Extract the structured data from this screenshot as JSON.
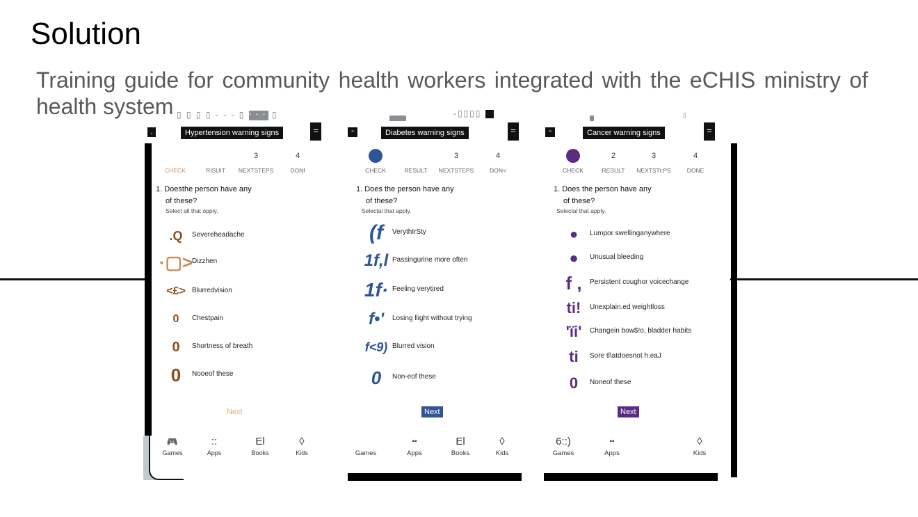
{
  "slide": {
    "title": "Solution",
    "subtitle": "Training guide for community health workers integrated with the eCHIS ministry of health system"
  },
  "glitch": {
    "g1": "▯ ▯ ▯ ▯ - - - ▯",
    "g1b": "- - -",
    "g1c": "▯",
    "g2": "-▯▯▯▯",
    "g3": "▯"
  },
  "panels": [
    {
      "title": "Hypertension warning signs",
      "accent": "#8a4e1f",
      "accent_light": "#c98a55",
      "next_bg": "#ffffff",
      "next_color": "#e8a87c",
      "steps": [
        {
          "num": "",
          "label": "CHECK"
        },
        {
          "num": "",
          "label": "RISUIT"
        },
        {
          "num": "3",
          "label": "NEXTSTEPS"
        },
        {
          "num": "4",
          "label": "DONf"
        }
      ],
      "question_line1": "1.  Doesthe person have any",
      "question_line2": "of these?",
      "hint": "Select all that oppiy.",
      "options": [
        {
          "icon": ".Q",
          "label": "Severeheadache"
        },
        {
          "icon": "·▢>",
          "label": "Dizzhen"
        },
        {
          "icon": "<£>",
          "label": "Blurredvision"
        },
        {
          "icon": "0",
          "label": "Chestpain"
        },
        {
          "icon": "0",
          "label": "Shortness of  breath"
        },
        {
          "icon": "0",
          "label": "Nooeof these"
        }
      ],
      "next": "Next",
      "nav": [
        {
          "icon": "🎮",
          "label": "Games"
        },
        {
          "icon": "::",
          "label": "Apps"
        },
        {
          "icon": "El",
          "label": "Books"
        },
        {
          "icon": "◊",
          "label": "Kids"
        }
      ]
    },
    {
      "title": "Diabetes warning signs",
      "accent": "#2f5597",
      "accent_light": "#2f5597",
      "next_bg": "#2f5597",
      "next_color": "#ffffff",
      "steps": [
        {
          "num": "",
          "label": "CHECK"
        },
        {
          "num": "",
          "label": "RESULT"
        },
        {
          "num": "3",
          "label": "NEXTSTEPS"
        },
        {
          "num": "4",
          "label": "DON<"
        }
      ],
      "question_line1": "1.  Does the person have any",
      "question_line2": "of these?",
      "hint": "Selectal that apply.",
      "options": [
        {
          "icon": "(f",
          "label": "VerythIrSty"
        },
        {
          "icon": "1f,l",
          "label": "Passingurine more often"
        },
        {
          "icon": "1f·",
          "label": "Feeling verytired"
        },
        {
          "icon": "f•'",
          "label": "Losing llight  without  trying"
        },
        {
          "icon": "f<9)",
          "label": "Blurred  vision"
        },
        {
          "icon": "0",
          "label": "Non-eof  these"
        }
      ],
      "next": "Next",
      "nav": [
        {
          "icon": "",
          "label": "Games"
        },
        {
          "icon": "▪▪",
          "label": "Apps"
        },
        {
          "icon": "El",
          "label": "Books"
        },
        {
          "icon": "◊",
          "label": "Kids"
        }
      ]
    },
    {
      "title": "Cancer warning signs",
      "accent": "#5b2c83",
      "accent_light": "#5b2c83",
      "next_bg": "#5b2c83",
      "next_color": "#ffffff",
      "steps": [
        {
          "num": "",
          "label": "CHECK"
        },
        {
          "num": "2",
          "label": "RESULT"
        },
        {
          "num": "3",
          "label": "NEXTSTt:PS"
        },
        {
          "num": "4",
          "label": "DONE"
        }
      ],
      "question_line1": "1.  Does the person have any",
      "question_line2": "of these?",
      "hint": "Selectal  that apply.",
      "options": [
        {
          "icon": "●",
          "label": "Lumpor  swellinganywhere"
        },
        {
          "icon": "●",
          "label": "Unusual bleeding"
        },
        {
          "icon": "f ,",
          "label": "Persistent coughor voicechange"
        },
        {
          "icon": "ti!",
          "label": "Unexplain.ed weightloss"
        },
        {
          "icon": "'ïi'",
          "label": "Changein  bow$!o, bladder habits"
        },
        {
          "icon": "ti",
          "label": "Sore tl\\atdoesnot h.eaJ"
        },
        {
          "icon": "0",
          "label": "Noneof  these"
        }
      ],
      "next": "Next",
      "nav": [
        {
          "icon": "6::)",
          "label": "Games"
        },
        {
          "icon": "▪▪",
          "label": "Apps"
        },
        {
          "icon": "",
          "label": ""
        },
        {
          "icon": "◊",
          "label": "Kids"
        }
      ]
    }
  ]
}
